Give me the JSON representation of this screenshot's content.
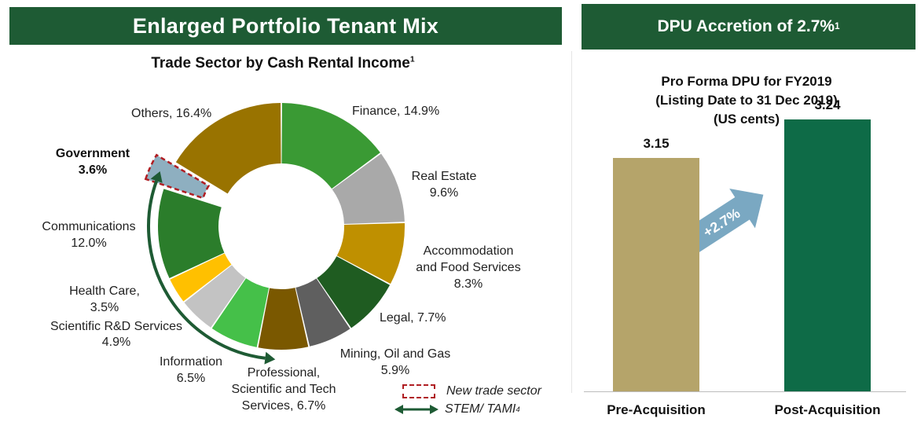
{
  "header": {
    "left_title": "Enlarged Portfolio Tenant Mix",
    "right_title": "DPU Accretion of 2.7%",
    "right_title_footnote": "1"
  },
  "chart_data": [
    {
      "type": "pie",
      "title": "Trade Sector by Cash Rental Income",
      "title_footnote": "1",
      "donut": true,
      "slices": [
        {
          "label": "Finance",
          "value": 14.9,
          "value_text": "14.9%",
          "color": "#3a9a34"
        },
        {
          "label": "Real Estate",
          "value": 9.6,
          "value_text": "9.6%",
          "color": "#a9a9a9"
        },
        {
          "label": "Accommodation and Food Services",
          "value": 8.3,
          "value_text": "8.3%",
          "color": "#bf9000"
        },
        {
          "label": "Legal",
          "value": 7.7,
          "value_text": "7.7%",
          "color": "#1f5c21"
        },
        {
          "label": "Mining, Oil and Gas",
          "value": 5.9,
          "value_text": "5.9%",
          "color": "#5f5f5f"
        },
        {
          "label": "Professional, Scientific and Tech Services",
          "value": 6.7,
          "value_text": "6.7%",
          "color": "#7a5800"
        },
        {
          "label": "Information",
          "value": 6.5,
          "value_text": "6.5%",
          "color": "#45c049"
        },
        {
          "label": "Scientific R&D Services",
          "value": 4.9,
          "value_text": "4.9%",
          "color": "#c3c3c3"
        },
        {
          "label": "Health Care",
          "value": 3.5,
          "value_text": "3.5%",
          "color": "#ffc000"
        },
        {
          "label": "Communications",
          "value": 12.0,
          "value_text": "12.0%",
          "color": "#2b7d2b"
        },
        {
          "label": "Government",
          "value": 3.6,
          "value_text": "3.6%",
          "color": "#8eafc0",
          "new_sector": true
        },
        {
          "label": "Others",
          "value": 16.4,
          "value_text": "16.4%",
          "color": "#997300"
        }
      ],
      "legend": {
        "new_sector": "New trade sector",
        "stem_tami": "STEM/ TAMI",
        "stem_tami_footnote": "4"
      },
      "colors": {
        "new_sector_border": "#b01e23",
        "stem_arrow": "#1e5b34"
      }
    },
    {
      "type": "bar",
      "title": "Pro Forma DPU for FY2019 (Listing Date to 31 Dec 2019) (US cents)",
      "title_lines": [
        "Pro Forma DPU for FY2019",
        "(Listing Date to 31 Dec 2019)",
        "(US cents)"
      ],
      "categories": [
        "Pre-Acquisition",
        "Post-Acquisition"
      ],
      "values": [
        3.15,
        3.24
      ],
      "value_labels": [
        "3.15",
        "3.24"
      ],
      "colors": [
        "#b5a46a",
        "#0e6b47"
      ],
      "annotation": "+2.7%",
      "annotation_color": "#7aa8c2",
      "ylim": [
        2.6,
        3.3
      ]
    }
  ]
}
